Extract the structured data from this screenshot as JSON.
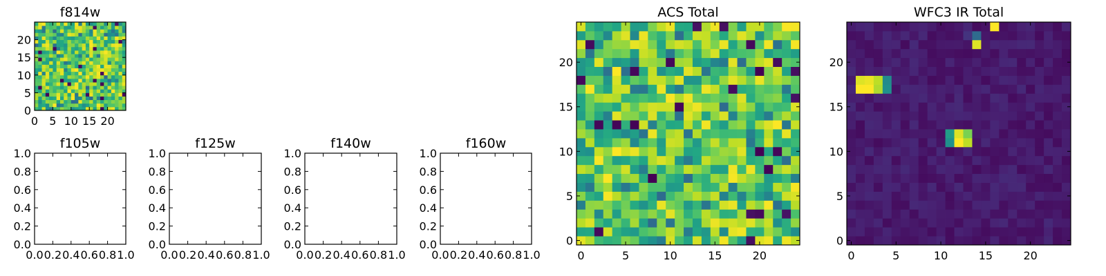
{
  "chart_data": [
    {
      "type": "heatmap",
      "title": "f814w",
      "xticks": [
        0,
        5,
        10,
        15,
        20
      ],
      "yticks": [
        0,
        5,
        10,
        15,
        20
      ],
      "xlim": [
        0,
        25
      ],
      "ylim": [
        0,
        25
      ],
      "grid_size": 25,
      "colormap": "viridis",
      "value_range": [
        0,
        1
      ],
      "pattern": "noise",
      "seed": 11
    },
    {
      "type": "scatter",
      "title": "f105w",
      "xlim": [
        0,
        1
      ],
      "ylim": [
        0,
        1
      ],
      "xticks": [
        "0.0",
        "0.2",
        "0.4",
        "0.6",
        "0.8",
        "1.0"
      ],
      "yticks": [
        "0.0",
        "0.2",
        "0.4",
        "0.6",
        "0.8",
        "1.0"
      ],
      "series": []
    },
    {
      "type": "scatter",
      "title": "f125w",
      "xlim": [
        0,
        1
      ],
      "ylim": [
        0,
        1
      ],
      "xticks": [
        "0.0",
        "0.2",
        "0.4",
        "0.6",
        "0.8",
        "1.0"
      ],
      "yticks": [
        "0.0",
        "0.2",
        "0.4",
        "0.6",
        "0.8",
        "1.0"
      ],
      "series": []
    },
    {
      "type": "scatter",
      "title": "f140w",
      "xlim": [
        0,
        1
      ],
      "ylim": [
        0,
        1
      ],
      "xticks": [
        "0.0",
        "0.2",
        "0.4",
        "0.6",
        "0.8",
        "1.0"
      ],
      "yticks": [
        "0.0",
        "0.2",
        "0.4",
        "0.6",
        "0.8",
        "1.0"
      ],
      "series": []
    },
    {
      "type": "scatter",
      "title": "f160w",
      "xlim": [
        0,
        1
      ],
      "ylim": [
        0,
        1
      ],
      "xticks": [
        "0.0",
        "0.2",
        "0.4",
        "0.6",
        "0.8",
        "1.0"
      ],
      "yticks": [
        "0.0",
        "0.2",
        "0.4",
        "0.6",
        "0.8",
        "1.0"
      ],
      "series": []
    },
    {
      "type": "heatmap",
      "title": "ACS Total",
      "xticks": [
        0,
        5,
        10,
        15,
        20
      ],
      "yticks": [
        0,
        5,
        10,
        15,
        20
      ],
      "xlim": [
        -0.5,
        24.5
      ],
      "ylim": [
        -0.5,
        24.5
      ],
      "grid_size": 25,
      "colormap": "viridis",
      "value_range": [
        0,
        1
      ],
      "pattern": "noise",
      "seed": 29
    },
    {
      "type": "heatmap",
      "title": "WFC3 IR Total",
      "xticks": [
        0,
        5,
        10,
        15,
        20
      ],
      "yticks": [
        0,
        5,
        10,
        15,
        20
      ],
      "xlim": [
        -0.5,
        24.5
      ],
      "ylim": [
        -0.5,
        24.5
      ],
      "grid_size": 25,
      "colormap": "viridis",
      "value_range": [
        0,
        1
      ],
      "pattern": "sources",
      "seed": 53,
      "background": [
        0.03,
        0.12
      ],
      "sources": [
        {
          "x": 1,
          "y": 17,
          "v": 1.0
        },
        {
          "x": 2,
          "y": 17,
          "v": 1.0
        },
        {
          "x": 1,
          "y": 18,
          "v": 0.95
        },
        {
          "x": 2,
          "y": 18,
          "v": 0.97
        },
        {
          "x": 3,
          "y": 17,
          "v": 0.88
        },
        {
          "x": 3,
          "y": 18,
          "v": 0.9
        },
        {
          "x": 4,
          "y": 17,
          "v": 0.5
        },
        {
          "x": 4,
          "y": 18,
          "v": 0.48
        },
        {
          "x": 11,
          "y": 11,
          "v": 0.5
        },
        {
          "x": 12,
          "y": 11,
          "v": 1.0
        },
        {
          "x": 13,
          "y": 11,
          "v": 0.9
        },
        {
          "x": 11,
          "y": 12,
          "v": 0.55
        },
        {
          "x": 12,
          "y": 12,
          "v": 0.95
        },
        {
          "x": 13,
          "y": 12,
          "v": 0.8
        },
        {
          "x": 14,
          "y": 22,
          "v": 0.95
        },
        {
          "x": 14,
          "y": 23,
          "v": 0.35
        },
        {
          "x": 16,
          "y": 24,
          "v": 1.0
        },
        {
          "x": 13,
          "y": 23,
          "v": 0.15
        }
      ]
    }
  ]
}
